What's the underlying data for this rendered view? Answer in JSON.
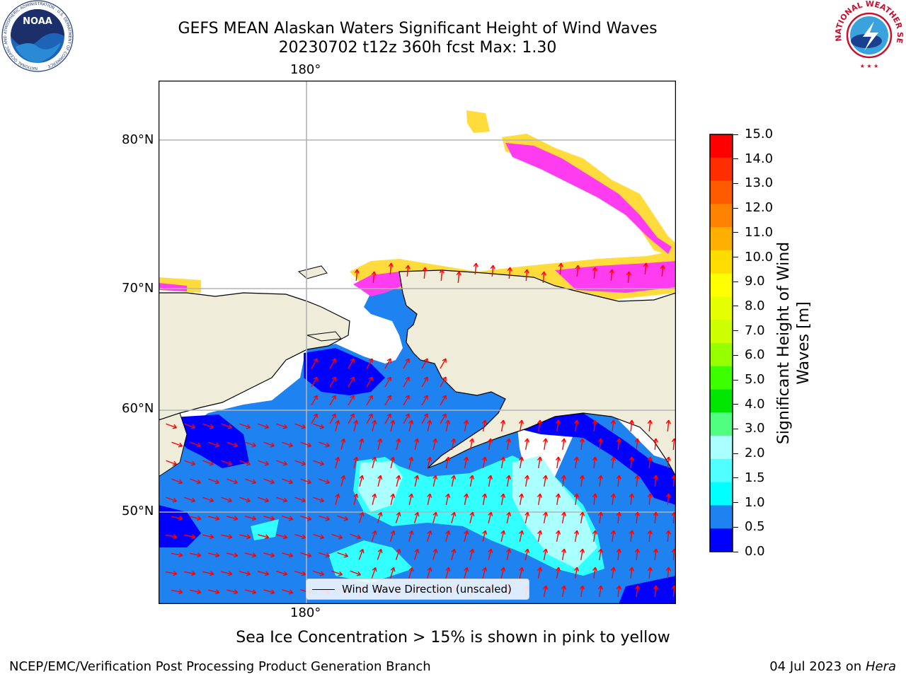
{
  "title_line1": "GEFS MEAN Alaskan Waters Significant Height of Wind Waves",
  "title_line2": "20230702 t12z 360h fcst   Max: 1.30",
  "map": {
    "top_lon_label": "180°",
    "bottom_lon_label": "180°",
    "lat_labels": [
      "80°N",
      "70°N",
      "60°N",
      "50°N"
    ],
    "colors": {
      "land": "#efedda",
      "ocean_0_05": "#0000ff",
      "ocean_05_1": "#1e82f0",
      "ocean_15_2": "#32ffff",
      "ice_pink": "#ff3cf0",
      "ice_yellow": "#ffdc3c",
      "arrow": "#ff0000",
      "grid": "#b3b3b3"
    }
  },
  "legend": {
    "label": "Wind Wave Direction (unscaled)"
  },
  "colorbar": {
    "label_line1": "Significant Height of Wind",
    "label_line2": "Waves [m]",
    "ticks": [
      "15.0",
      "14.0",
      "13.0",
      "12.0",
      "11.0",
      "10.0",
      "9.0",
      "8.0",
      "7.0",
      "6.0",
      "5.0",
      "4.0",
      "3.0",
      "2.0",
      "1.5",
      "1.0",
      "0.5",
      "0.0"
    ],
    "colors": [
      "#ff0000",
      "#ff2d00",
      "#ff5a00",
      "#ff8200",
      "#ffaf00",
      "#ffdc00",
      "#ffff00",
      "#e6ff00",
      "#cdff00",
      "#96ff00",
      "#3cff00",
      "#00e600",
      "#50ff80",
      "#aaffff",
      "#50ffff",
      "#00ffff",
      "#1e82f0",
      "#0000ff"
    ]
  },
  "footnote": "Sea Ice Concentration > 15% is shown in pink to yellow",
  "credit_left": "NCEP/EMC/Verification Post Processing Product Generation Branch",
  "credit_right_date": "04 Jul 2023 on ",
  "credit_right_host": "Hera",
  "logos": {
    "noaa_text": "NOAA",
    "noaa_ring": "NATIONAL OCEANIC AND ATMOSPHERIC ADMINISTRATION · U.S. DEPARTMENT OF COMMERCE",
    "nws_ring": "NATIONAL WEATHER SERVICE"
  }
}
